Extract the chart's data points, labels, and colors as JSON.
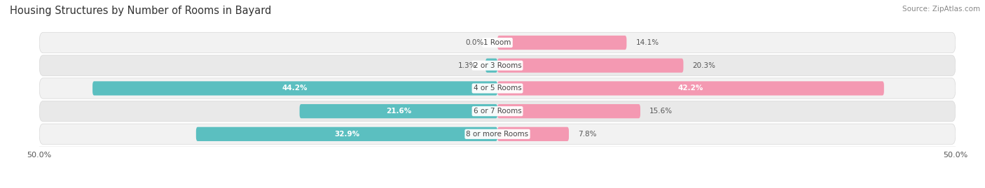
{
  "title": "Housing Structures by Number of Rooms in Bayard",
  "source": "Source: ZipAtlas.com",
  "categories": [
    "1 Room",
    "2 or 3 Rooms",
    "4 or 5 Rooms",
    "6 or 7 Rooms",
    "8 or more Rooms"
  ],
  "owner_values": [
    0.0,
    1.3,
    44.2,
    21.6,
    32.9
  ],
  "renter_values": [
    14.1,
    20.3,
    42.2,
    15.6,
    7.8
  ],
  "owner_color": "#5bbfc0",
  "renter_color": "#f499b2",
  "xlim": 50.0,
  "title_fontsize": 10.5,
  "source_fontsize": 7.5,
  "bar_height": 0.62,
  "background_color": "#ffffff",
  "row_bg_colors": [
    "#f2f2f2",
    "#e9e9e9"
  ],
  "row_border_color": "#d8d8d8"
}
